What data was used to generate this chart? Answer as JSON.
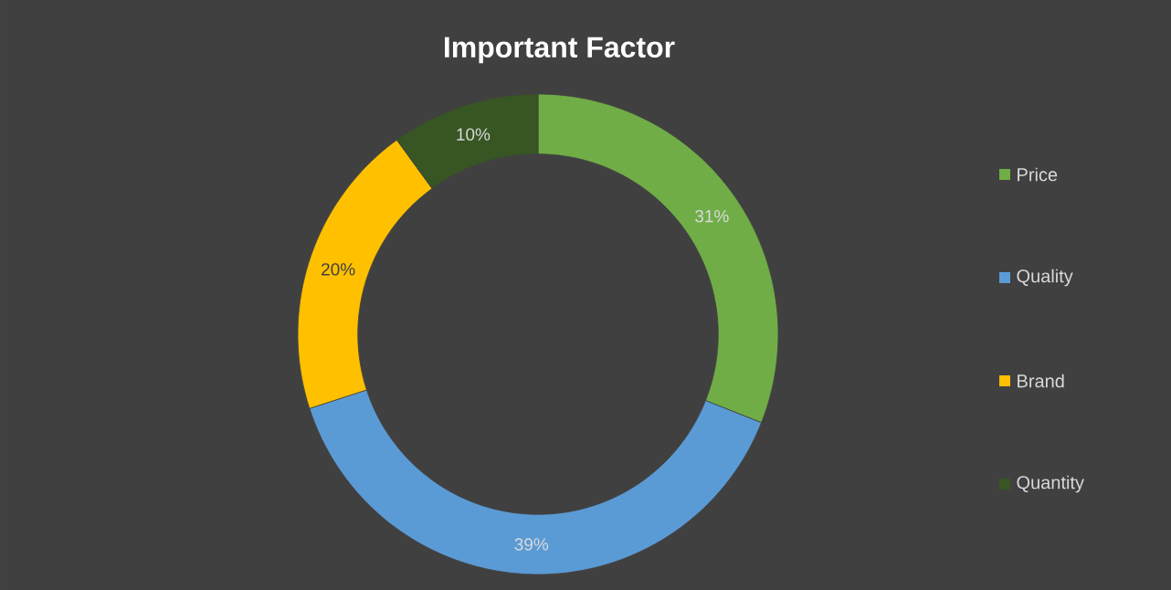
{
  "chart_data": {
    "type": "donut",
    "title": "Important Factor",
    "categories": [
      "Price",
      "Quality",
      "Brand",
      "Quantity"
    ],
    "values": [
      31,
      39,
      20,
      10
    ],
    "colors": [
      "#70ad47",
      "#5b9bd5",
      "#ffc000",
      "#375623"
    ],
    "value_labels": [
      "31%",
      "39%",
      "20%",
      "10%"
    ],
    "legend": "right"
  }
}
